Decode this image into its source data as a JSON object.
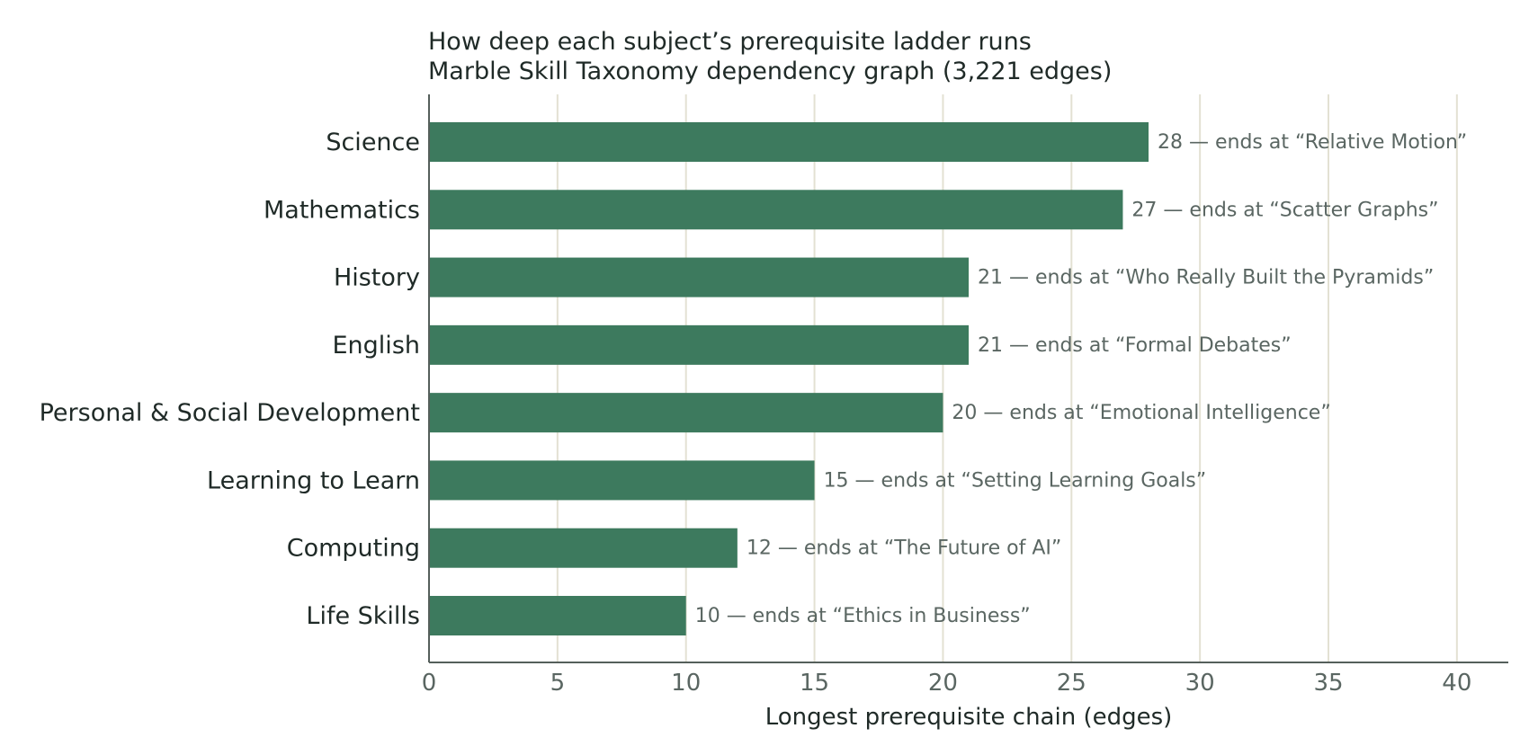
{
  "chart_data": {
    "type": "bar",
    "orientation": "horizontal",
    "title": "How deep each subject’s prerequisite ladder runs",
    "subtitle": "Marble Skill Taxonomy dependency graph (3,221 edges)",
    "xlabel": "Longest prerequisite chain (edges)",
    "ylabel": "",
    "xlim": [
      0,
      42
    ],
    "xticks": [
      0,
      5,
      10,
      15,
      20,
      25,
      30,
      35,
      40
    ],
    "grid": "vertical",
    "legend": "none",
    "categories": [
      "Science",
      "Mathematics",
      "History",
      "English",
      "Personal & Social Development",
      "Learning to Learn",
      "Computing",
      "Life Skills"
    ],
    "values": [
      28,
      27,
      21,
      21,
      20,
      15,
      12,
      10
    ],
    "annotations": [
      "— ends at “Relative Motion”",
      "— ends at “Scatter Graphs”",
      "— ends at “Who Really Built the Pyramids”",
      "— ends at “Formal Debates”",
      "— ends at “Emotional Intelligence”",
      "— ends at “Setting Learning Goals”",
      "— ends at “The Future of AI”",
      "— ends at “Ethics in Business”"
    ]
  },
  "colors": {
    "bar": "#3d7a5e",
    "grid": "#e3e1d3",
    "axis": "#555f5b",
    "text": "#1f2a27",
    "annotation": "#5a6662",
    "tick": "#5a6662"
  }
}
